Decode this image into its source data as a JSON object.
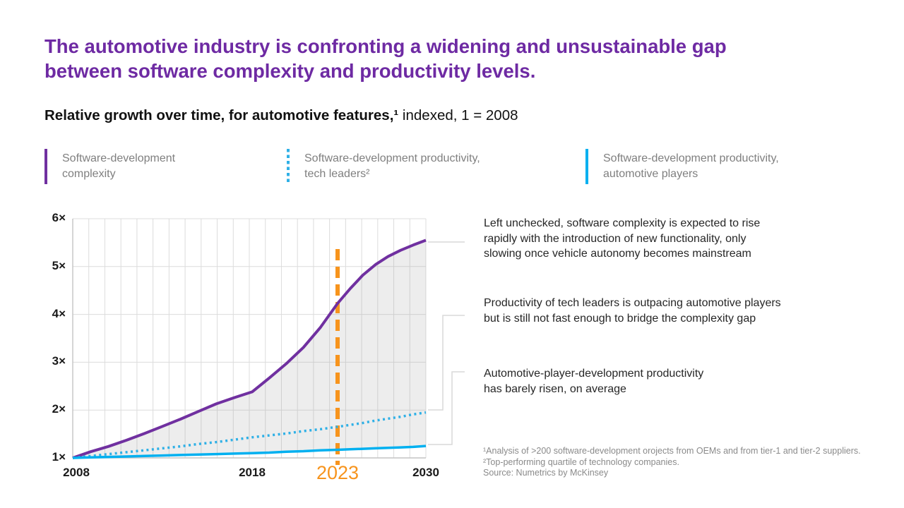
{
  "title": {
    "lines": [
      "The automotive industry is confronting a widening and unsustainable gap",
      "between software complexity and productivity levels."
    ],
    "color": "#6E2AA3"
  },
  "subtitle": {
    "bold": "Relative growth over time, for automotive features,¹",
    "regular": " indexed, 1 = 2008"
  },
  "legend": {
    "items": [
      {
        "id": "complexity",
        "marker": "solid",
        "color": "#7030A0",
        "lines": [
          "Software-development",
          "complexity"
        ]
      },
      {
        "id": "tech-leaders",
        "marker": "dotted",
        "color": "#2FB0E6",
        "lines": [
          "Software-development productivity,",
          "tech leaders²"
        ]
      },
      {
        "id": "automotive-players",
        "marker": "solid",
        "color": "#00B0F0",
        "lines": [
          "Software-development productivity,",
          "automotive players"
        ]
      }
    ]
  },
  "chart_data": {
    "type": "line",
    "title": "Relative growth over time, for automotive features, indexed, 1 = 2008",
    "grid": true,
    "y_axis": {
      "min": 1,
      "max": 6,
      "ticks": [
        {
          "label": "6×",
          "value": 6
        },
        {
          "label": "5×",
          "value": 5
        },
        {
          "label": "4×",
          "value": 4
        },
        {
          "label": "3×",
          "value": 3
        },
        {
          "label": "2×",
          "value": 2
        },
        {
          "label": "1×",
          "value": 1
        }
      ]
    },
    "x_axis": {
      "years": [
        2008,
        2009,
        2010,
        2011,
        2012,
        2013,
        2014,
        2015,
        2016,
        2017,
        2018,
        2019,
        2020,
        2021,
        2022,
        2023,
        2024,
        2025,
        2026,
        2027,
        2028,
        2029,
        2030
      ],
      "gridline_intervals": 22,
      "anchor_years": [
        2008,
        2018,
        2023,
        2030
      ],
      "anchor_fractions": [
        0,
        0.508,
        0.75,
        1
      ],
      "ticks": [
        {
          "label": "2008",
          "year": 2008,
          "highlight": false
        },
        {
          "label": "2018",
          "year": 2018,
          "highlight": false
        },
        {
          "label": "2023",
          "year": 2023,
          "highlight": true
        },
        {
          "label": "2030",
          "year": 2030,
          "highlight": false
        }
      ]
    },
    "highlight_line": {
      "year": 2023,
      "color": "#F7941D",
      "style": "dashed-vertical"
    },
    "series": [
      {
        "name": "Software-development complexity",
        "color": "#7030A0",
        "style": "solid",
        "width": 4,
        "values": [
          1.0,
          1.13,
          1.24,
          1.37,
          1.51,
          1.66,
          1.81,
          1.97,
          2.13,
          2.26,
          2.38,
          2.67,
          2.97,
          3.31,
          3.73,
          4.23,
          4.54,
          4.82,
          5.04,
          5.21,
          5.34,
          5.45,
          5.55
        ]
      },
      {
        "name": "Software-development productivity, tech leaders",
        "color": "#2FB0E6",
        "style": "dotted",
        "width": 3.5,
        "values": [
          1.0,
          1.04,
          1.08,
          1.12,
          1.16,
          1.2,
          1.24,
          1.29,
          1.33,
          1.38,
          1.43,
          1.47,
          1.51,
          1.56,
          1.6,
          1.65,
          1.69,
          1.73,
          1.78,
          1.82,
          1.86,
          1.91,
          1.95
        ]
      },
      {
        "name": "Software-development productivity, automotive players",
        "color": "#00B0F0",
        "style": "solid",
        "width": 3.5,
        "values": [
          1.0,
          1.01,
          1.02,
          1.03,
          1.04,
          1.05,
          1.06,
          1.07,
          1.08,
          1.09,
          1.1,
          1.11,
          1.13,
          1.14,
          1.16,
          1.17,
          1.18,
          1.19,
          1.2,
          1.21,
          1.22,
          1.23,
          1.25
        ]
      }
    ],
    "gap_fill": {
      "between": [
        "Software-development complexity",
        "Software-development productivity, automotive players"
      ],
      "color": "#9c9c9c",
      "opacity": 0.18
    },
    "colors": {
      "grid": "#dcdcdc",
      "axis": "#c3c3c3",
      "connector": "#d9d9d9"
    }
  },
  "annotations": [
    {
      "lines": [
        "Left unchecked, software complexity is expected to rise",
        "rapidly with the introduction of new functionality, only",
        "slowing once vehicle autonomy becomes mainstream"
      ]
    },
    {
      "lines": [
        "Productivity of tech leaders is outpacing automotive players",
        "but is still not fast enough to bridge the complexity gap"
      ]
    },
    {
      "lines": [
        "Automotive-player-development productivity",
        "has barely risen, on average"
      ]
    }
  ],
  "footnotes": {
    "lines": [
      "¹Analysis of >200 software-development orojects from OEMs and from tier-1 and tier-2 suppliers.",
      "²Top-performing quartile of technology companies.",
      " Source: Numetrics by McKinsey"
    ]
  }
}
